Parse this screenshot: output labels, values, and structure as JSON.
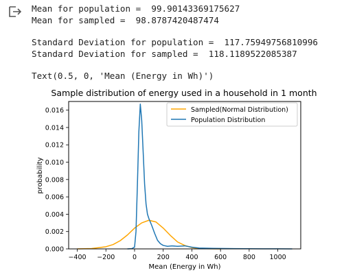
{
  "output": {
    "icon": "output-arrow-icon",
    "lines": [
      "Mean for population =  99.90143369175627",
      "Mean for sampled =  98.8787420487474",
      "Standard Deviation for population =  117.75949756810996",
      "Standard Deviation for sampled =  118.1189522085387",
      "Text(0.5, 0, 'Mean (Energy in Wh)')"
    ]
  },
  "chart_data": {
    "type": "line",
    "title": "Sample distribution of energy used in a household in 1 month",
    "xlabel": "Mean (Energy in Wh)",
    "ylabel": "probability",
    "xlim": [
      -460,
      1160
    ],
    "ylim": [
      0,
      0.017
    ],
    "xticks": [
      -400,
      -200,
      0,
      200,
      400,
      600,
      800,
      1000
    ],
    "xtick_labels": [
      "−400",
      "−200",
      "0",
      "200",
      "400",
      "600",
      "800",
      "1000"
    ],
    "yticks": [
      0,
      0.002,
      0.004,
      0.006,
      0.008,
      0.01,
      0.012,
      0.014,
      0.016
    ],
    "ytick_labels": [
      "0.000",
      "0.002",
      "0.004",
      "0.006",
      "0.008",
      "0.010",
      "0.012",
      "0.014",
      "0.016"
    ],
    "grid": false,
    "legend_position": "top-right",
    "series": [
      {
        "name": "Sampled(Normal Distribution)",
        "color": "#ffa500",
        "x": [
          -400,
          -300,
          -200,
          -150,
          -100,
          -50,
          0,
          50,
          100,
          150,
          200,
          250,
          300,
          350,
          400,
          450,
          500,
          550,
          600
        ],
        "y": [
          0,
          4e-05,
          0.00025,
          0.0005,
          0.00095,
          0.0016,
          0.0024,
          0.003,
          0.0033,
          0.0031,
          0.0024,
          0.00155,
          0.0008,
          0.0004,
          0.00015,
          5e-05,
          2e-05,
          1e-05,
          0
        ]
      },
      {
        "name": "Population Distribution",
        "color": "#1f77b4",
        "x": [
          -50,
          -20,
          0,
          10,
          20,
          30,
          40,
          50,
          60,
          70,
          80,
          90,
          100,
          110,
          120,
          140,
          160,
          180,
          200,
          230,
          260,
          300,
          350,
          400,
          450,
          500,
          550,
          600,
          700,
          800,
          900,
          1000,
          1100
        ],
        "y": [
          0,
          3e-05,
          0.0002,
          0.002,
          0.0075,
          0.0135,
          0.0167,
          0.0148,
          0.0112,
          0.0075,
          0.0052,
          0.004,
          0.0035,
          0.0031,
          0.0027,
          0.0018,
          0.001,
          0.0006,
          0.0004,
          0.0003,
          0.00035,
          0.0003,
          0.00035,
          0.0002,
          0.0001,
          8e-05,
          6e-05,
          5e-05,
          3e-05,
          2e-05,
          1e-05,
          1e-05,
          0
        ]
      }
    ]
  }
}
